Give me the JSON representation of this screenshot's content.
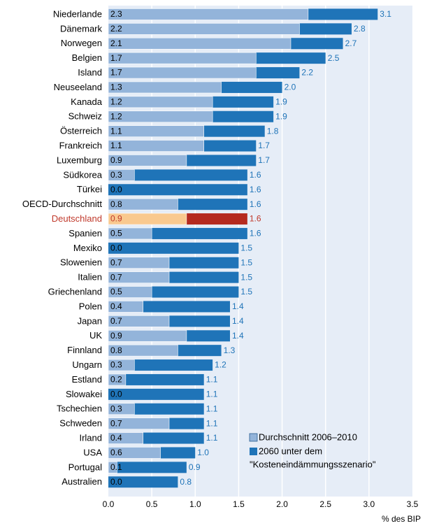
{
  "chart_data": {
    "type": "bar",
    "orientation": "horizontal",
    "stacking": "overlay",
    "categories": [
      "Niederlande",
      "Dänemark",
      "Norwegen",
      "Belgien",
      "Island",
      "Neuseeland",
      "Kanada",
      "Schweiz",
      "Österreich",
      "Frankreich",
      "Luxemburg",
      "Südkorea",
      "Türkei",
      "OECD-Durchschnitt",
      "Deutschland",
      "Spanien",
      "Mexiko",
      "Slowenien",
      "Italien",
      "Griechenland",
      "Polen",
      "Japan",
      "UK",
      "Finnland",
      "Ungarn",
      "Estland",
      "Slowakei",
      "Tschechien",
      "Schweden",
      "Irland",
      "USA",
      "Portugal",
      "Australien"
    ],
    "series": [
      {
        "name": "Durchschnitt 2006–2010",
        "color": "#93b4da",
        "values": [
          2.3,
          2.2,
          2.1,
          1.7,
          1.7,
          1.3,
          1.2,
          1.2,
          1.1,
          1.1,
          0.9,
          0.3,
          0.0,
          0.8,
          0.9,
          0.5,
          0.0,
          0.7,
          0.7,
          0.5,
          0.4,
          0.7,
          0.9,
          0.8,
          0.3,
          0.2,
          0.0,
          0.3,
          0.7,
          0.4,
          0.6,
          0.1,
          0.0
        ]
      },
      {
        "name": "2060 unter dem \"Kosteneindämmungsszenario\"",
        "color": "#1f74b8",
        "values": [
          3.1,
          2.8,
          2.7,
          2.5,
          2.2,
          2.0,
          1.9,
          1.9,
          1.8,
          1.7,
          1.7,
          1.6,
          1.6,
          1.6,
          1.6,
          1.6,
          1.5,
          1.5,
          1.5,
          1.5,
          1.4,
          1.4,
          1.4,
          1.3,
          1.2,
          1.1,
          1.1,
          1.1,
          1.1,
          1.1,
          1.0,
          0.9,
          0.8
        ]
      }
    ],
    "value_labels_2060": [
      "3.1",
      "2.8",
      "2.7",
      "2.5",
      "2.2",
      "2.0",
      "1.9",
      "1.9",
      "1.8",
      "1.7",
      "1.7",
      "1.6",
      "1.6",
      "1.6",
      "1.6",
      "1.6",
      "1.5",
      "1.5",
      "1.5",
      "1.5",
      "1.4",
      "1.4",
      "1.4",
      "1.3",
      "1.2",
      "1.1",
      "1.1",
      "1.1",
      "1.1",
      "1.1",
      "1.0",
      "0.9",
      "0.8"
    ],
    "value_labels_avg": [
      "2.3",
      "2.2",
      "2.1",
      "1.7",
      "1.7",
      "1.3",
      "1.2",
      "1.2",
      "1.1",
      "1.1",
      "0.9",
      "0.3",
      "0.0",
      "0.8",
      "0.9",
      "0.5",
      "0.0",
      "0.7",
      "0.7",
      "0.5",
      "0.4",
      "0.7",
      "0.9",
      "0.8",
      "0.3",
      "0.2",
      "0.0",
      "0.3",
      "0.7",
      "0.4",
      "0.6",
      "0.1",
      "0.0"
    ],
    "highlight": {
      "category": "Deutschland",
      "label_color": "#c0392b",
      "avg_color": "#f9c98f",
      "future_color": "#b52a1f"
    },
    "xlim": [
      0,
      3.5
    ],
    "xticks": [
      "0.0",
      "0.5",
      "1.0",
      "1.5",
      "2.0",
      "2.5",
      "3.0",
      "3.5"
    ],
    "xlabel": "% des BIP",
    "legend_position": "bottom-right",
    "grid": "vertical white lines",
    "plot_background": "#e6edf7"
  }
}
